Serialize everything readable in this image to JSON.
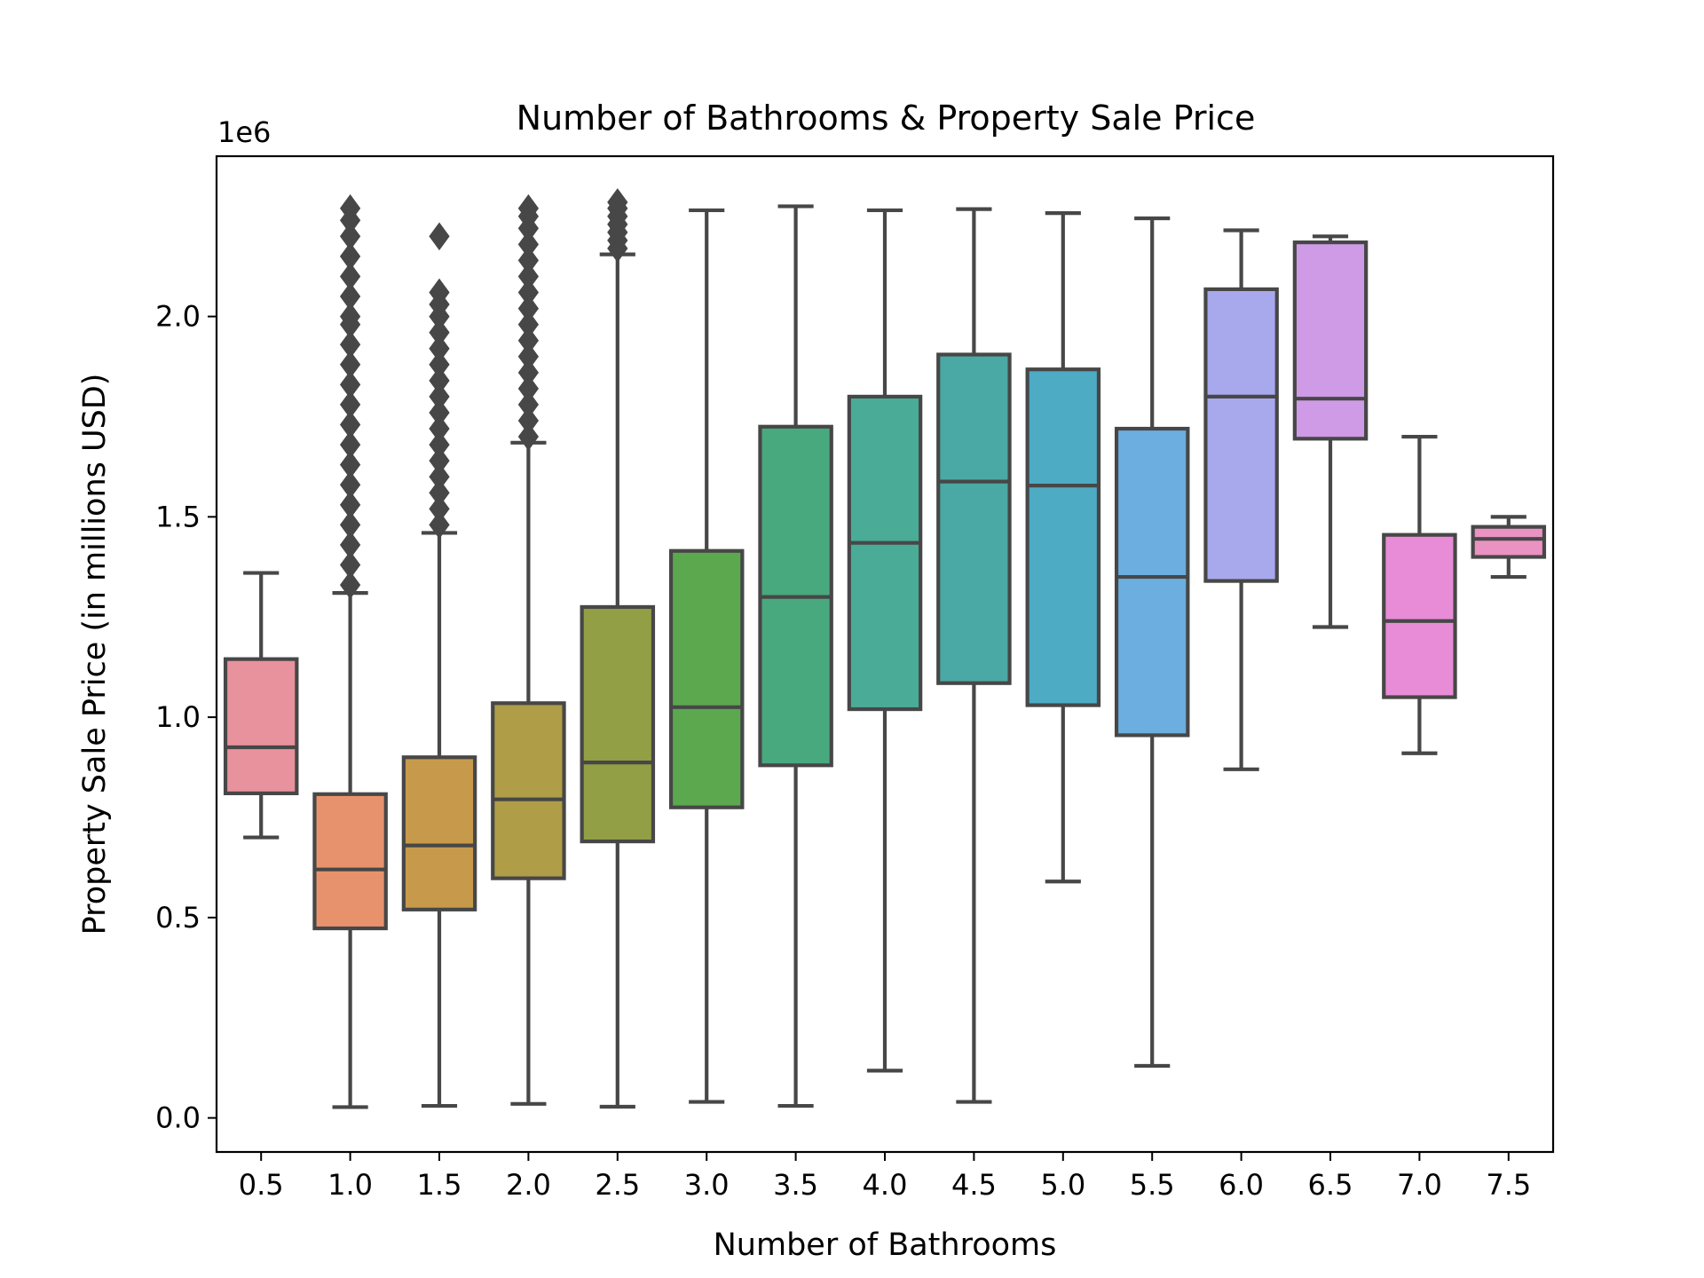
{
  "chart_data": {
    "type": "box",
    "title": "Number of Bathrooms & Property Sale Price",
    "xlabel": "Number of Bathrooms",
    "ylabel": "Property Sale Price (in millions USD)",
    "y_offset_label": "1e6",
    "ylim": [
      -85000,
      2400000
    ],
    "y_ticks": [
      0,
      500000,
      1000000,
      1500000,
      2000000
    ],
    "y_tick_labels": [
      "0.0",
      "0.5",
      "1.0",
      "1.5",
      "2.0"
    ],
    "categories": [
      "0.5",
      "1.0",
      "1.5",
      "2.0",
      "2.5",
      "3.0",
      "3.5",
      "4.0",
      "4.5",
      "5.0",
      "5.5",
      "6.0",
      "6.5",
      "7.0",
      "7.5"
    ],
    "grid": false,
    "boxes": [
      {
        "category": "0.5",
        "color": "#e8929d",
        "whisker_low": 700000,
        "q1": 810000,
        "median": 925000,
        "q3": 1145000,
        "whisker_high": 1360000,
        "fliers": []
      },
      {
        "category": "1.0",
        "color": "#e8926d",
        "whisker_low": 27000,
        "q1": 473000,
        "median": 620000,
        "q3": 808000,
        "whisker_high": 1310000,
        "fliers": [
          1330000,
          1380000,
          1430000,
          1480000,
          1530000,
          1580000,
          1630000,
          1680000,
          1730000,
          1780000,
          1830000,
          1880000,
          1930000,
          1980000,
          2000000,
          2050000,
          2100000,
          2150000,
          2200000,
          2240000,
          2270000
        ]
      },
      {
        "category": "1.5",
        "color": "#c79a4b",
        "whisker_low": 30000,
        "q1": 520000,
        "median": 680000,
        "q3": 900000,
        "whisker_high": 1460000,
        "fliers": [
          1480000,
          1520000,
          1560000,
          1600000,
          1640000,
          1680000,
          1720000,
          1760000,
          1800000,
          1840000,
          1880000,
          1920000,
          1960000,
          2000000,
          2030000,
          2060000,
          2200000
        ]
      },
      {
        "category": "2.0",
        "color": "#b09d47",
        "whisker_low": 35000,
        "q1": 598000,
        "median": 795000,
        "q3": 1035000,
        "whisker_high": 1685000,
        "fliers": [
          1700000,
          1740000,
          1780000,
          1820000,
          1860000,
          1900000,
          1940000,
          1980000,
          2020000,
          2060000,
          2100000,
          2140000,
          2180000,
          2220000,
          2250000,
          2270000
        ]
      },
      {
        "category": "2.5",
        "color": "#929f44",
        "whisker_low": 28000,
        "q1": 690000,
        "median": 887000,
        "q3": 1275000,
        "whisker_high": 2155000,
        "fliers": [
          2170000,
          2190000,
          2210000,
          2230000,
          2250000,
          2270000,
          2285000
        ]
      },
      {
        "category": "3.0",
        "color": "#5ba84e",
        "whisker_low": 40000,
        "q1": 775000,
        "median": 1025000,
        "q3": 1415000,
        "whisker_high": 2265000,
        "fliers": []
      },
      {
        "category": "3.5",
        "color": "#48a97f",
        "whisker_low": 30000,
        "q1": 880000,
        "median": 1300000,
        "q3": 1725000,
        "whisker_high": 2275000,
        "fliers": []
      },
      {
        "category": "4.0",
        "color": "#4aab97",
        "whisker_low": 118000,
        "q1": 1020000,
        "median": 1435000,
        "q3": 1800000,
        "whisker_high": 2265000,
        "fliers": []
      },
      {
        "category": "4.5",
        "color": "#4aa9a4",
        "whisker_low": 40000,
        "q1": 1085000,
        "median": 1588000,
        "q3": 1905000,
        "whisker_high": 2268000,
        "fliers": []
      },
      {
        "category": "5.0",
        "color": "#4dabc4",
        "whisker_low": 590000,
        "q1": 1030000,
        "median": 1578000,
        "q3": 1868000,
        "whisker_high": 2258000,
        "fliers": []
      },
      {
        "category": "5.5",
        "color": "#6caee0",
        "whisker_low": 130000,
        "q1": 955000,
        "median": 1350000,
        "q3": 1720000,
        "whisker_high": 2245000,
        "fliers": []
      },
      {
        "category": "6.0",
        "color": "#a8a9ec",
        "whisker_low": 870000,
        "q1": 1340000,
        "median": 1800000,
        "q3": 2068000,
        "whisker_high": 2215000,
        "fliers": []
      },
      {
        "category": "6.5",
        "color": "#cf9ae6",
        "whisker_low": 1225000,
        "q1": 1695000,
        "median": 1795000,
        "q3": 2185000,
        "whisker_high": 2200000,
        "fliers": []
      },
      {
        "category": "7.0",
        "color": "#e98cd8",
        "whisker_low": 910000,
        "q1": 1050000,
        "median": 1240000,
        "q3": 1455000,
        "whisker_high": 1700000,
        "fliers": []
      },
      {
        "category": "7.5",
        "color": "#ea92c2",
        "whisker_low": 1350000,
        "q1": 1400000,
        "median": 1445000,
        "q3": 1475000,
        "whisker_high": 1500000,
        "fliers": []
      }
    ]
  }
}
